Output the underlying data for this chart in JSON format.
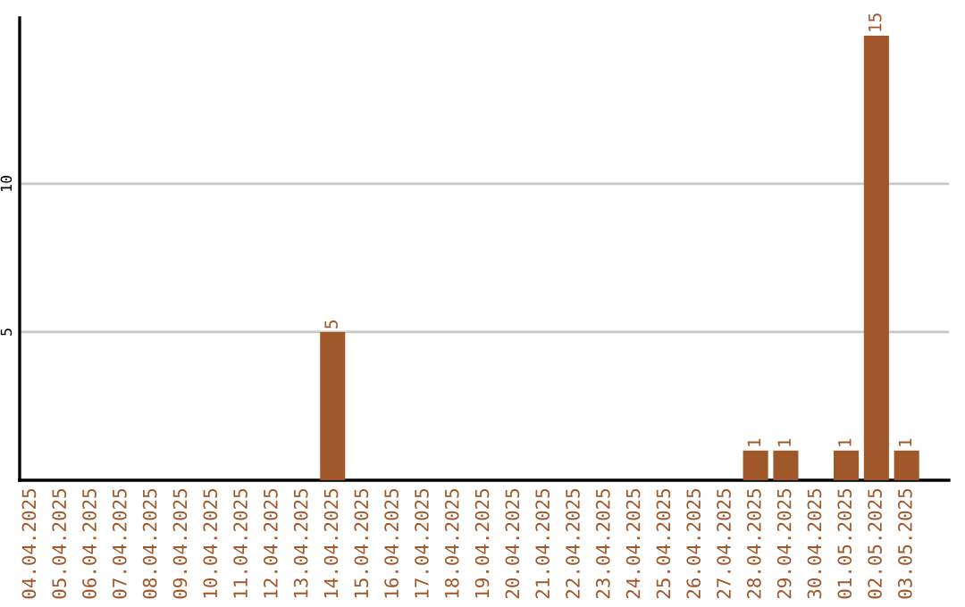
{
  "chart_data": {
    "type": "bar",
    "categories": [
      "04.04.2025",
      "05.04.2025",
      "06.04.2025",
      "07.04.2025",
      "08.04.2025",
      "09.04.2025",
      "10.04.2025",
      "11.04.2025",
      "12.04.2025",
      "13.04.2025",
      "14.04.2025",
      "15.04.2025",
      "16.04.2025",
      "17.04.2025",
      "18.04.2025",
      "19.04.2025",
      "20.04.2025",
      "21.04.2025",
      "22.04.2025",
      "23.04.2025",
      "24.04.2025",
      "25.04.2025",
      "26.04.2025",
      "27.04.2025",
      "28.04.2025",
      "29.04.2025",
      "30.04.2025",
      "01.05.2025",
      "02.05.2025",
      "03.05.2025"
    ],
    "values": [
      0,
      0,
      0,
      0,
      0,
      0,
      0,
      0,
      0,
      0,
      5,
      0,
      0,
      0,
      0,
      0,
      0,
      0,
      0,
      0,
      0,
      0,
      0,
      0,
      1,
      1,
      0,
      1,
      15,
      1
    ],
    "value_labels": [
      null,
      null,
      null,
      null,
      null,
      null,
      null,
      null,
      null,
      null,
      "5",
      null,
      null,
      null,
      null,
      null,
      null,
      null,
      null,
      null,
      null,
      null,
      null,
      null,
      "1",
      "1",
      null,
      "1",
      "15",
      "1"
    ],
    "color": "#a0582a",
    "ylim": [
      0,
      15.6
    ],
    "yticks": [
      5,
      10
    ],
    "grid": "y"
  }
}
